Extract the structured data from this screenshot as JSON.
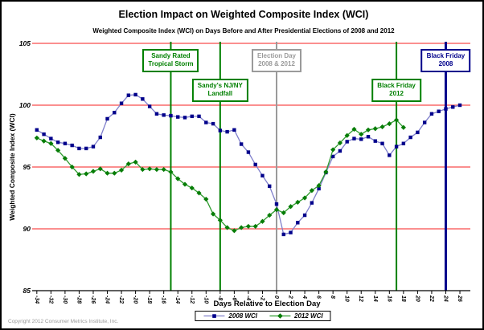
{
  "page": {
    "title": "Election Impact on Weighted Composite Index (WCI)",
    "subtitle": "Weighted Composite Index (WCI) on Days Before and After Presidential Elections of 2008 and 2012",
    "copyright": "Copyright 2012 Consumer Metrics Institute, Inc."
  },
  "chart_data": {
    "type": "line",
    "title": "Election Impact on Weighted Composite Index (WCI)",
    "subtitle": "Weighted Composite Index (WCI) on Days Before and After Presidential Elections of 2008 and 2012",
    "xlabel": "Days Relative to Election Day",
    "ylabel": "Weighted Composite Index (WCI)",
    "xlim": [
      -34,
      26
    ],
    "ylim": [
      85,
      105
    ],
    "grid": "horizontal red lines every 5 units",
    "legend_position": "bottom-center",
    "x_ticks": [
      -34,
      -32,
      -30,
      -28,
      -26,
      -24,
      -22,
      -20,
      -18,
      -16,
      -14,
      -12,
      -10,
      -8,
      -6,
      -4,
      -2,
      0,
      2,
      4,
      6,
      8,
      10,
      12,
      14,
      16,
      18,
      20,
      22,
      24,
      26
    ],
    "y_ticks": [
      105,
      100,
      95,
      90,
      85
    ],
    "y_gridlines": [
      105,
      100,
      95,
      90
    ],
    "series": [
      {
        "name": "2008 WCI",
        "marker": "square",
        "marker_color": "#00008b",
        "line_color": "#8080cc",
        "x_start": -34,
        "x_step": 1,
        "values": [
          98.0,
          97.65,
          97.3,
          97.0,
          96.9,
          96.75,
          96.5,
          96.5,
          96.65,
          97.4,
          98.9,
          99.4,
          100.15,
          100.8,
          100.85,
          100.5,
          99.9,
          99.3,
          99.2,
          99.15,
          99.05,
          99.0,
          99.1,
          99.1,
          98.6,
          98.5,
          97.95,
          97.85,
          98.0,
          96.85,
          96.2,
          95.2,
          94.3,
          93.45,
          92.0,
          89.55,
          89.7,
          90.5,
          91.1,
          92.1,
          93.25,
          94.55,
          95.85,
          96.3,
          97.05,
          97.3,
          97.25,
          97.45,
          97.1,
          96.9,
          95.95,
          96.65,
          96.9,
          97.4,
          97.8,
          98.6,
          99.3,
          99.5,
          99.7,
          99.85,
          100.0
        ]
      },
      {
        "name": "2012 WCI",
        "marker": "diamond",
        "marker_color": "#077d07",
        "line_color": "#2f9b2f",
        "x_start": -34,
        "x_step": 1,
        "values": [
          97.35,
          97.1,
          96.9,
          96.35,
          95.7,
          95.0,
          94.4,
          94.45,
          94.65,
          94.85,
          94.5,
          94.5,
          94.75,
          95.25,
          95.4,
          94.8,
          94.85,
          94.8,
          94.8,
          94.6,
          94.05,
          93.6,
          93.3,
          92.9,
          92.4,
          91.2,
          90.7,
          90.1,
          89.85,
          90.1,
          90.2,
          90.2,
          90.6,
          91.1,
          91.55,
          91.3,
          91.8,
          92.15,
          92.5,
          93.1,
          93.5,
          94.6,
          96.4,
          96.95,
          97.55,
          98.05,
          97.65,
          98.0,
          98.1,
          98.25,
          98.5,
          98.8,
          98.2
        ]
      }
    ],
    "events": [
      {
        "line1": "Sandy Rated",
        "line2": "Tropical Storm",
        "day": -15,
        "color": "green",
        "row": 1
      },
      {
        "line1": "Sandy's NJ/NY",
        "line2": "Landfall",
        "day": -8,
        "color": "green",
        "row": 2
      },
      {
        "line1": "Election Day",
        "line2": "2008 & 2012",
        "day": 0,
        "color": "gray",
        "row": 1
      },
      {
        "line1": "Black Friday",
        "line2": "2012",
        "day": 17,
        "color": "green",
        "row": 2
      },
      {
        "line1": "Black Friday",
        "line2": "2008",
        "day": 24,
        "color": "navy",
        "row": 1
      }
    ],
    "colors": {
      "green": "#008000",
      "gray": "#9a9a9a",
      "navy": "#00008b",
      "grid_red": "#fa6a6a",
      "axis_black": "#000000"
    }
  }
}
